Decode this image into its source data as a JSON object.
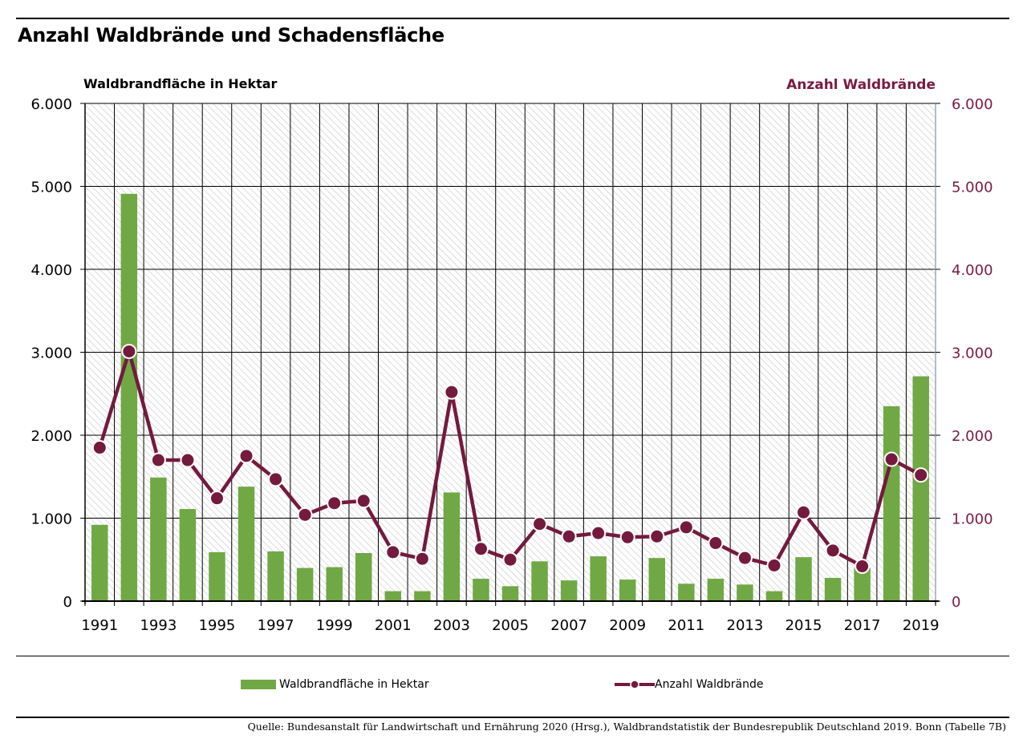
{
  "page": {
    "title": "Anzahl Waldbrände und Schadensfläche",
    "source": "Quelle: Bundesanstalt für Landwirtschaft und Ernährung 2020 (Hrsg.), Waldbrandstatistik der Bundesrepublik Deutschland 2019. Bonn (Tabelle 7B)"
  },
  "legend": {
    "bars_label": "Waldbrandfläche in Hektar",
    "line_label": "Anzahl Waldbrände"
  },
  "colors": {
    "bar": "#70a845",
    "line": "#741a3e",
    "right_axis_text": "#7a1a40",
    "grid": "#000000",
    "hatch": "#c8c8c8"
  },
  "chart_data": {
    "type": "bar",
    "title": "Anzahl Waldbrände und Schadensfläche",
    "ylabel": "Waldbrandfläche in Hektar",
    "y2label": "Anzahl Waldbrände",
    "ylim": [
      0,
      6000
    ],
    "y2lim": [
      0,
      6000
    ],
    "yticks": [
      "0",
      "1.000",
      "2.000",
      "3.000",
      "4.000",
      "5.000",
      "6.000"
    ],
    "y2ticks": [
      "0",
      "1.000",
      "2.000",
      "3.000",
      "4.000",
      "5.000",
      "6.000"
    ],
    "x": [
      1991,
      1992,
      1993,
      1994,
      1995,
      1996,
      1997,
      1998,
      1999,
      2000,
      2001,
      2002,
      2003,
      2004,
      2005,
      2006,
      2007,
      2008,
      2009,
      2010,
      2011,
      2012,
      2013,
      2014,
      2015,
      2016,
      2017,
      2018,
      2019
    ],
    "xticks_shown": [
      "1991",
      "1993",
      "1995",
      "1997",
      "1999",
      "2001",
      "2003",
      "2005",
      "2007",
      "2009",
      "2011",
      "2013",
      "2015",
      "2017",
      "2019"
    ],
    "grid": true,
    "legend_position": "bottom",
    "series": [
      {
        "name": "Waldbrandfläche in Hektar",
        "type": "bar",
        "axis": "left",
        "values": [
          920,
          4910,
          1490,
          1110,
          590,
          1380,
          600,
          400,
          410,
          580,
          120,
          120,
          1310,
          270,
          180,
          480,
          250,
          540,
          260,
          520,
          210,
          270,
          200,
          120,
          530,
          280,
          400,
          2350,
          2710
        ]
      },
      {
        "name": "Anzahl Waldbrände",
        "type": "line",
        "axis": "right",
        "values": [
          1850,
          3010,
          1700,
          1700,
          1240,
          1750,
          1470,
          1040,
          1180,
          1210,
          590,
          510,
          2520,
          630,
          500,
          930,
          780,
          820,
          770,
          780,
          890,
          700,
          520,
          430,
          1070,
          610,
          420,
          1710,
          1520
        ]
      }
    ]
  }
}
